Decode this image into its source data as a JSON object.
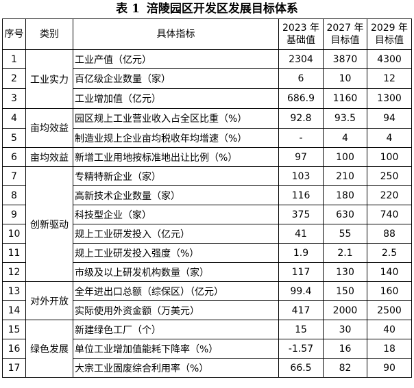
{
  "title": {
    "label": "表",
    "number": "1",
    "text": "涪陵园区开发区发展目标体系"
  },
  "headers": {
    "no": "序号",
    "category": "类别",
    "indicator": "具体指标",
    "y2023a": "2023 年",
    "y2023b": "基础值",
    "y2027a": "2027 年",
    "y2027b": "目标值",
    "y2029a": "2029 年",
    "y2029b": "目标值"
  },
  "categories": {
    "industrial": "工业实力",
    "efficiency1": "亩均效益",
    "efficiency2": "亩均效益",
    "innovation": "创新驱动",
    "opening": "对外开放",
    "green": "绿色发展"
  },
  "rows": [
    {
      "no": "1",
      "indicator": "工业产值（亿元）",
      "v2023": "2304",
      "v2027": "3870",
      "v2029": "4300"
    },
    {
      "no": "2",
      "indicator": "百亿级企业数量（家）",
      "v2023": "6",
      "v2027": "10",
      "v2029": "12"
    },
    {
      "no": "3",
      "indicator": "工业增加值（亿元）",
      "v2023": "686.9",
      "v2027": "1160",
      "v2029": "1300"
    },
    {
      "no": "4",
      "indicator": "园区规上工业营业收入占全区比重（%）",
      "v2023": "92.8",
      "v2027": "93.5",
      "v2029": "94"
    },
    {
      "no": "5",
      "indicator": "制造业规上企业亩均税收年均增速（%）",
      "v2023": "-",
      "v2027": "4",
      "v2029": "4"
    },
    {
      "no": "6",
      "indicator": "新增工业用地按标准地出让比例（%）",
      "v2023": "97",
      "v2027": "100",
      "v2029": "100"
    },
    {
      "no": "7",
      "indicator": "专精特新企业（家）",
      "v2023": "103",
      "v2027": "210",
      "v2029": "250"
    },
    {
      "no": "8",
      "indicator": "高新技术企业数量（家）",
      "v2023": "116",
      "v2027": "180",
      "v2029": "220"
    },
    {
      "no": "9",
      "indicator": "科技型企业（家）",
      "v2023": "375",
      "v2027": "630",
      "v2029": "740"
    },
    {
      "no": "10",
      "indicator": "规上工业研发投入（亿元）",
      "v2023": "41",
      "v2027": "55",
      "v2029": "88"
    },
    {
      "no": "11",
      "indicator": "规上工业研发投入强度（%）",
      "v2023": "1.9",
      "v2027": "2.1",
      "v2029": "2.5"
    },
    {
      "no": "12",
      "indicator": "市级及以上研发机构数量（家）",
      "v2023": "117",
      "v2027": "130",
      "v2029": "140"
    },
    {
      "no": "13",
      "indicator": "全年进出口总额（综保区）（亿元）",
      "v2023": "99.4",
      "v2027": "150",
      "v2029": "160"
    },
    {
      "no": "14",
      "indicator": "实际使用外资金额（万美元）",
      "v2023": "417",
      "v2027": "2000",
      "v2029": "2500"
    },
    {
      "no": "15",
      "indicator": "新建绿色工厂（个）",
      "v2023": "15",
      "v2027": "30",
      "v2029": "40"
    },
    {
      "no": "16",
      "indicator": "单位工业增加值能耗下降率（%）",
      "v2023": "-1.57",
      "v2027": "16",
      "v2029": "18"
    },
    {
      "no": "17",
      "indicator": "大宗工业固废综合利用率（%）",
      "v2023": "66.5",
      "v2027": "82",
      "v2029": "90"
    }
  ]
}
